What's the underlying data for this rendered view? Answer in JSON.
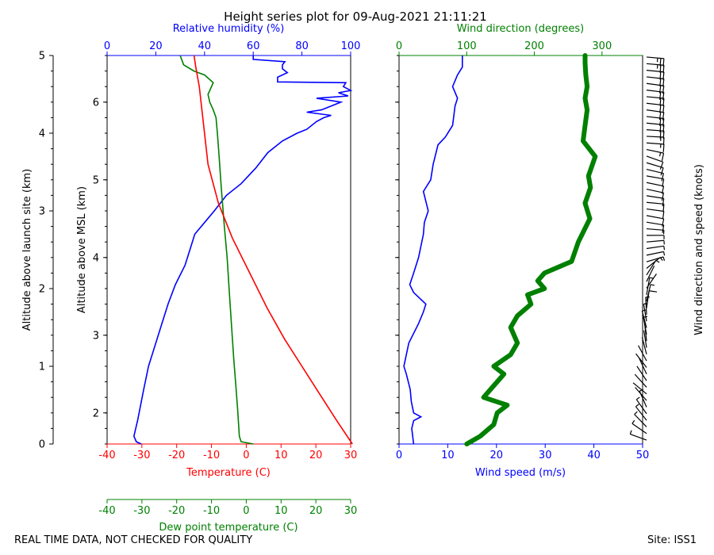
{
  "title": "Height series plot for 09-Aug-2021 21:11:21",
  "footer_left": "REAL TIME DATA, NOT CHECKED FOR QUALITY",
  "footer_right": "Site: ISS1",
  "colors": {
    "temp": "#ff0000",
    "dew": "#008000",
    "rh": "#0000ff",
    "wspd": "#0000ff",
    "wdir": "#008000",
    "barb": "#000000"
  },
  "chart_data": [
    {
      "type": "line",
      "panel": "thermo",
      "title": "Height series plot for 09-Aug-2021 21:11:21",
      "axes": {
        "x_bottom": {
          "label": "Temperature (C)",
          "range": [
            -40,
            30
          ],
          "ticks": [
            "-40",
            "-30",
            "-20",
            "-10",
            "0",
            "10",
            "20",
            "30"
          ],
          "color": "#ff0000"
        },
        "x_bottom2": {
          "label": "Dew point temperature (C)",
          "range": [
            -40,
            30
          ],
          "ticks": [
            "-40",
            "-30",
            "-20",
            "-10",
            "0",
            "10",
            "20",
            "30"
          ],
          "color": "#008000"
        },
        "x_top": {
          "label": "Relative humidity (%)",
          "range": [
            0,
            100
          ],
          "ticks": [
            "0",
            "20",
            "40",
            "60",
            "80",
            "100"
          ],
          "color": "#0000ff"
        },
        "y_left": {
          "label": "Altitude above launch site (km)",
          "range": [
            0,
            5
          ],
          "ticks": [
            "0",
            "1",
            "2",
            "3",
            "4",
            "5"
          ]
        },
        "y_inner": {
          "label": "Altitude above MSL (km)",
          "range": [
            1.6,
            6.6
          ],
          "ticks": [
            "2",
            "3",
            "4",
            "5",
            "6"
          ]
        }
      },
      "series": [
        {
          "name": "Temperature",
          "color": "#ff0000",
          "points": [
            [
              30.5,
              0
            ],
            [
              26,
              0.3
            ],
            [
              21,
              0.65
            ],
            [
              16,
              1.0
            ],
            [
              11,
              1.35
            ],
            [
              6,
              1.75
            ],
            [
              1,
              2.2
            ],
            [
              -4,
              2.65
            ],
            [
              -8,
              3.1
            ],
            [
              -11,
              3.6
            ],
            [
              -12.5,
              4.2
            ],
            [
              -13.5,
              4.6
            ],
            [
              -14.5,
              4.85
            ],
            [
              -15,
              5.0
            ]
          ]
        },
        {
          "name": "Dew point",
          "color": "#008000",
          "points": [
            [
              2,
              0
            ],
            [
              -1.5,
              0.03
            ],
            [
              -2,
              0.1
            ],
            [
              -2.5,
              0.45
            ],
            [
              -3,
              0.75
            ],
            [
              -3.6,
              1.1
            ],
            [
              -4.2,
              1.5
            ],
            [
              -4.8,
              1.9
            ],
            [
              -5.5,
              2.4
            ],
            [
              -6.3,
              2.8
            ],
            [
              -7.2,
              3.3
            ],
            [
              -7.8,
              3.7
            ],
            [
              -8.3,
              4.0
            ],
            [
              -8.7,
              4.2
            ],
            [
              -9.5,
              4.3
            ],
            [
              -10.5,
              4.4
            ],
            [
              -11,
              4.5
            ],
            [
              -9.5,
              4.65
            ],
            [
              -12,
              4.75
            ],
            [
              -15,
              4.8
            ],
            [
              -18,
              4.88
            ],
            [
              -19,
              5.0
            ]
          ]
        },
        {
          "name": "Relative humidity",
          "color": "#0000ff",
          "points": [
            [
              14,
              0
            ],
            [
              12,
              0.03
            ],
            [
              11,
              0.1
            ],
            [
              12.5,
              0.3
            ],
            [
              15,
              0.7
            ],
            [
              17,
              1.0
            ],
            [
              20,
              1.3
            ],
            [
              23,
              1.6
            ],
            [
              25,
              1.8
            ],
            [
              28,
              2.05
            ],
            [
              32,
              2.3
            ],
            [
              34,
              2.5
            ],
            [
              36,
              2.7
            ],
            [
              40,
              2.85
            ],
            [
              44,
              3.0
            ],
            [
              49,
              3.2
            ],
            [
              55,
              3.35
            ],
            [
              61,
              3.55
            ],
            [
              66,
              3.75
            ],
            [
              72,
              3.9
            ],
            [
              78,
              4.0
            ],
            [
              82,
              4.05
            ],
            [
              86,
              4.15
            ],
            [
              89,
              4.2
            ],
            [
              92,
              4.23
            ],
            [
              82,
              4.27
            ],
            [
              88,
              4.3
            ],
            [
              92,
              4.35
            ],
            [
              96,
              4.4
            ],
            [
              86,
              4.45
            ],
            [
              99,
              4.48
            ],
            [
              95,
              4.52
            ],
            [
              100,
              4.55
            ],
            [
              97,
              4.6
            ],
            [
              98,
              4.65
            ],
            [
              70,
              4.66
            ],
            [
              70,
              4.72
            ],
            [
              74,
              4.78
            ],
            [
              72,
              4.83
            ],
            [
              72,
              4.88
            ],
            [
              73,
              4.92
            ],
            [
              60,
              4.95
            ],
            [
              60,
              5.0
            ]
          ]
        }
      ]
    },
    {
      "type": "line",
      "panel": "wind",
      "axes": {
        "x_bottom": {
          "label": "Wind speed (m/s)",
          "range": [
            0,
            50
          ],
          "ticks": [
            "0",
            "10",
            "20",
            "30",
            "40",
            "50"
          ],
          "color": "#0000ff"
        },
        "x_top": {
          "label": "Wind direction (degrees)",
          "range": [
            0,
            360
          ],
          "ticks": [
            "0",
            "100",
            "200",
            "300"
          ],
          "color": "#008000"
        },
        "y_right_label": "Wind direction and speed (knots)"
      },
      "series": [
        {
          "name": "Wind speed",
          "color": "#0000ff",
          "points": [
            [
              3,
              0
            ],
            [
              2.6,
              0.2
            ],
            [
              3,
              0.3
            ],
            [
              4.5,
              0.35
            ],
            [
              3,
              0.4
            ],
            [
              2.5,
              0.55
            ],
            [
              2.3,
              0.7
            ],
            [
              1.5,
              0.9
            ],
            [
              1,
              1.0
            ],
            [
              1.5,
              1.15
            ],
            [
              2,
              1.3
            ],
            [
              4,
              1.55
            ],
            [
              5,
              1.7
            ],
            [
              5.5,
              1.8
            ],
            [
              3,
              1.95
            ],
            [
              2.2,
              2.05
            ],
            [
              3,
              2.2
            ],
            [
              4,
              2.4
            ],
            [
              5,
              2.7
            ],
            [
              5.2,
              2.85
            ],
            [
              6,
              3.0
            ],
            [
              5,
              3.25
            ],
            [
              6.5,
              3.4
            ],
            [
              7,
              3.6
            ],
            [
              8,
              3.85
            ],
            [
              9.5,
              3.95
            ],
            [
              11,
              4.1
            ],
            [
              11.5,
              4.35
            ],
            [
              12,
              4.45
            ],
            [
              11,
              4.6
            ],
            [
              12,
              4.75
            ],
            [
              13,
              4.85
            ],
            [
              13,
              5.0
            ]
          ]
        },
        {
          "name": "Wind direction",
          "color": "#008000",
          "points": [
            [
              100,
              0
            ],
            [
              120,
              0.1
            ],
            [
              140,
              0.25
            ],
            [
              145,
              0.4
            ],
            [
              160,
              0.5
            ],
            [
              125,
              0.6
            ],
            [
              135,
              0.7
            ],
            [
              155,
              0.9
            ],
            [
              140,
              1.0
            ],
            [
              165,
              1.15
            ],
            [
              175,
              1.3
            ],
            [
              165,
              1.5
            ],
            [
              175,
              1.65
            ],
            [
              195,
              1.8
            ],
            [
              190,
              1.92
            ],
            [
              215,
              2.0
            ],
            [
              205,
              2.1
            ],
            [
              215,
              2.2
            ],
            [
              255,
              2.35
            ],
            [
              265,
              2.6
            ],
            [
              282,
              2.9
            ],
            [
              275,
              3.1
            ],
            [
              283,
              3.3
            ],
            [
              280,
              3.45
            ],
            [
              290,
              3.7
            ],
            [
              272,
              3.9
            ],
            [
              275,
              4.1
            ],
            [
              278,
              4.3
            ],
            [
              275,
              4.45
            ],
            [
              278,
              4.6
            ],
            [
              276,
              4.75
            ],
            [
              275,
              4.9
            ],
            [
              275,
              5.0
            ]
          ]
        }
      ]
    }
  ]
}
